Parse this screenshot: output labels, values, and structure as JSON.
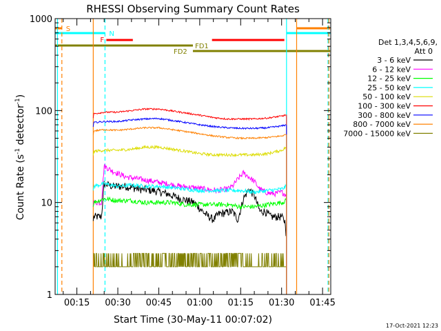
{
  "chart_data": {
    "type": "line",
    "title": "RHESSI Observing Summary Count Rates",
    "xlabel": "Start Time (30-May-11 00:07:02)",
    "ylabel_main": "Count Rate (s",
    "ylabel_sup1": "-1",
    "ylabel_mid": " detector",
    "ylabel_sup2": "-1",
    "ylabel_end": ")",
    "yscale": "log",
    "xlim_min": [
      7.03,
      108.0
    ],
    "ylim": [
      1,
      1000
    ],
    "x_ticks": [
      {
        "min": 15,
        "label": "00:15"
      },
      {
        "min": 30,
        "label": "00:30"
      },
      {
        "min": 45,
        "label": "00:45"
      },
      {
        "min": 60,
        "label": "01:00"
      },
      {
        "min": 75,
        "label": "01:15"
      },
      {
        "min": 90,
        "label": "01:30"
      },
      {
        "min": 105,
        "label": "01:45"
      }
    ],
    "y_ticks": [
      {
        "value": 1,
        "label": "1"
      },
      {
        "value": 10,
        "label": "10"
      },
      {
        "value": 100,
        "label": "100"
      },
      {
        "value": 1000,
        "label": "1000"
      }
    ],
    "legend_header": [
      "Det 1,3,4,5,6,9,",
      "Att 0"
    ],
    "legend_position": "right",
    "series": [
      {
        "name": "3 - 6 keV",
        "color": "#000000",
        "x": [
          21,
          24,
          25,
          28,
          33,
          38,
          43,
          48,
          53,
          58,
          62,
          65,
          67,
          70,
          72,
          74,
          76,
          78,
          80,
          82,
          84,
          86,
          88,
          90,
          91.5,
          91.8
        ],
        "values": [
          7,
          7,
          16,
          15,
          15,
          14,
          13.5,
          12.5,
          11,
          10,
          7.5,
          6.5,
          7.5,
          7.8,
          8,
          6.5,
          11,
          14,
          12,
          8,
          8,
          7,
          7,
          7,
          6,
          3
        ]
      },
      {
        "name": "6 - 12 keV",
        "color": "#ff00ff",
        "x": [
          21,
          24,
          25,
          28,
          33,
          38,
          43,
          48,
          53,
          58,
          62,
          66,
          70,
          72,
          74,
          76,
          78,
          80,
          82,
          84,
          86,
          88,
          90,
          91.8
        ],
        "values": [
          10,
          10,
          25,
          22,
          19,
          18,
          17,
          16,
          15,
          14.5,
          14,
          13.5,
          14,
          15,
          18,
          21,
          19,
          17,
          14,
          13,
          12.5,
          12.5,
          13,
          12
        ]
      },
      {
        "name": "12 - 25 keV",
        "color": "#00ff00",
        "x": [
          21,
          25,
          30,
          35,
          40,
          45,
          50,
          55,
          60,
          65,
          70,
          75,
          80,
          85,
          90,
          91.8
        ],
        "values": [
          10,
          11,
          10.5,
          10.5,
          10,
          10,
          10,
          9.5,
          9.5,
          9.5,
          9.5,
          9,
          9,
          9.5,
          10,
          10.5
        ]
      },
      {
        "name": "25 - 50 keV",
        "color": "#00ffff",
        "x": [
          21,
          25,
          30,
          35,
          40,
          45,
          50,
          55,
          60,
          65,
          70,
          75,
          80,
          85,
          90,
          91.8
        ],
        "values": [
          15,
          16,
          15,
          15.5,
          15,
          15,
          14.5,
          14,
          13.5,
          13.5,
          13.5,
          13.5,
          13,
          13.5,
          14,
          15
        ]
      },
      {
        "name": "50 - 100 keV",
        "color": "#dcdc00",
        "x": [
          21,
          25,
          30,
          35,
          40,
          45,
          50,
          55,
          60,
          65,
          70,
          75,
          80,
          85,
          90,
          91.8
        ],
        "values": [
          36,
          37,
          37,
          38,
          40,
          40,
          38,
          36,
          34,
          33,
          33,
          33,
          33,
          34,
          37,
          40
        ]
      },
      {
        "name": "100 - 300 keV",
        "color": "#ff0000",
        "x": [
          21,
          25,
          30,
          35,
          40,
          45,
          50,
          55,
          60,
          65,
          70,
          75,
          80,
          85,
          90,
          91.8
        ],
        "values": [
          92,
          96,
          96,
          100,
          104,
          104,
          99,
          94,
          89,
          84,
          81,
          81,
          81,
          83,
          87,
          90
        ]
      },
      {
        "name": "300 - 800 keV",
        "color": "#0000ff",
        "x": [
          21,
          25,
          30,
          35,
          40,
          45,
          50,
          55,
          60,
          65,
          70,
          75,
          80,
          85,
          90,
          91.8
        ],
        "values": [
          74,
          76,
          76,
          79,
          81,
          82,
          78,
          74,
          70,
          67,
          65,
          64,
          64,
          65,
          68,
          70
        ]
      },
      {
        "name": "800 - 7000 keV",
        "color": "#ff8000",
        "x": [
          21,
          25,
          30,
          35,
          40,
          45,
          50,
          55,
          60,
          65,
          70,
          75,
          80,
          85,
          90,
          91.8
        ],
        "values": [
          60,
          62,
          61,
          63,
          65,
          65,
          62,
          59,
          56,
          53,
          51,
          50,
          50,
          51,
          53,
          55
        ]
      },
      {
        "name": "7000 - 15000 keV",
        "color": "#808000",
        "x": [
          21,
          25,
          30,
          35,
          40,
          45,
          50,
          55,
          60,
          65,
          70,
          75,
          80,
          85,
          90,
          91.8
        ],
        "values": [
          1.7,
          1.8,
          1.9,
          2,
          2.2,
          2.4,
          2.2,
          2,
          1.9,
          2,
          2.3,
          2.2,
          2,
          2.2,
          2.4,
          2.2
        ]
      }
    ],
    "flag_bars": [
      {
        "label": "S",
        "color": "#ff8000",
        "segments": [
          [
            7.03,
            9.5
          ],
          [
            95.5,
            107.8
          ]
        ]
      },
      {
        "label": "N",
        "color": "#00ffff",
        "segments": [
          [
            7.03,
            25.3
          ],
          [
            91.8,
            107.8
          ]
        ]
      },
      {
        "label": "F",
        "color": "#ff0000",
        "segments": [
          [
            25.8,
            35.5
          ],
          [
            64.5,
            91.0
          ]
        ]
      },
      {
        "label": "FD1",
        "color": "#808000",
        "segments": [
          [
            7.03,
            57.5
          ]
        ]
      },
      {
        "label": "FD2",
        "color": "#808000",
        "segments": [
          [
            57.5,
            107.8
          ]
        ]
      }
    ],
    "vertical_markers": [
      {
        "min": 7.9,
        "color": "#00ffff",
        "style": "solid"
      },
      {
        "min": 9.5,
        "color": "#ff8000",
        "style": "dashed"
      },
      {
        "min": 21.0,
        "color": "#ff8000",
        "style": "solid"
      },
      {
        "min": 25.3,
        "color": "#00ffff",
        "style": "dashed"
      },
      {
        "min": 91.8,
        "color": "#00ffff",
        "style": "solid"
      },
      {
        "min": 95.5,
        "color": "#ff8000",
        "style": "solid"
      },
      {
        "min": 107.0,
        "color": "#00ffff",
        "style": "dashed"
      },
      {
        "min": 107.3,
        "color": "#ff8000",
        "style": "dashed"
      }
    ],
    "timestamp": "17-Oct-2021 12:23"
  }
}
